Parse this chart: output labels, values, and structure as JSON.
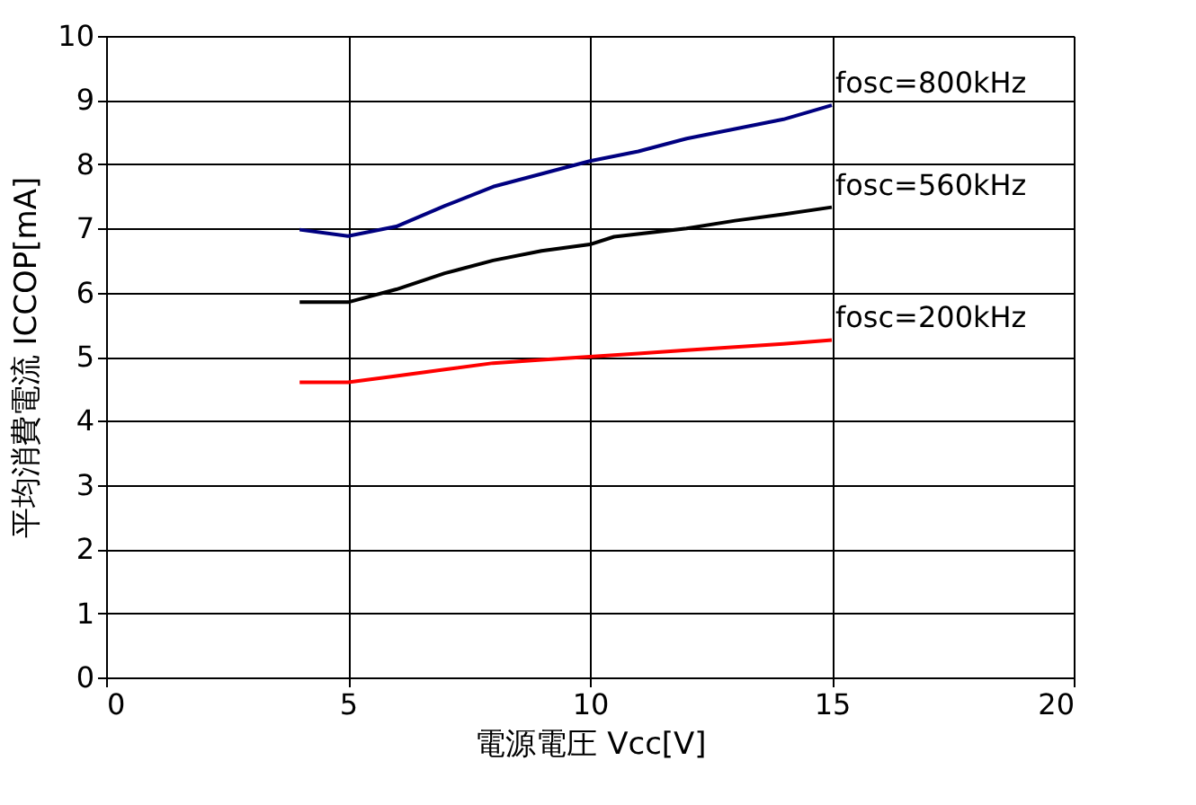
{
  "chart_data": {
    "type": "line",
    "xlabel": "電源電圧 Vcc[V]",
    "ylabel": "平均消費電流 ICCOP[mA]",
    "xlim": [
      0,
      20
    ],
    "xticks": [
      0,
      5,
      10,
      15,
      20
    ],
    "ylim": [
      0,
      10
    ],
    "yticks": [
      0,
      1,
      2,
      3,
      4,
      5,
      6,
      7,
      8,
      9,
      10
    ],
    "grid": true,
    "marker": "none",
    "line_style": "solid",
    "series": [
      {
        "name": "fosc=800kHz",
        "color": "#000080",
        "x": [
          4,
          5,
          6,
          7,
          8,
          9,
          10,
          11,
          12,
          13,
          14,
          15
        ],
        "values": [
          6.98,
          6.88,
          7.03,
          7.35,
          7.65,
          7.85,
          8.05,
          8.2,
          8.4,
          8.55,
          8.7,
          8.92
        ]
      },
      {
        "name": "fosc=560kHz",
        "color": "#000000",
        "x": [
          4,
          5,
          6,
          7,
          8,
          9,
          10,
          10.5,
          12,
          13,
          14,
          15
        ],
        "values": [
          5.85,
          5.85,
          6.05,
          6.3,
          6.5,
          6.65,
          6.75,
          6.87,
          7.0,
          7.12,
          7.22,
          7.33
        ]
      },
      {
        "name": "fosc=200kHz",
        "color": "#ff0000",
        "x": [
          4,
          5,
          6,
          7,
          8,
          9,
          10,
          11,
          12,
          13,
          14,
          15
        ],
        "values": [
          4.6,
          4.6,
          4.7,
          4.8,
          4.9,
          4.95,
          5.0,
          5.05,
          5.1,
          5.15,
          5.2,
          5.26
        ]
      }
    ]
  }
}
